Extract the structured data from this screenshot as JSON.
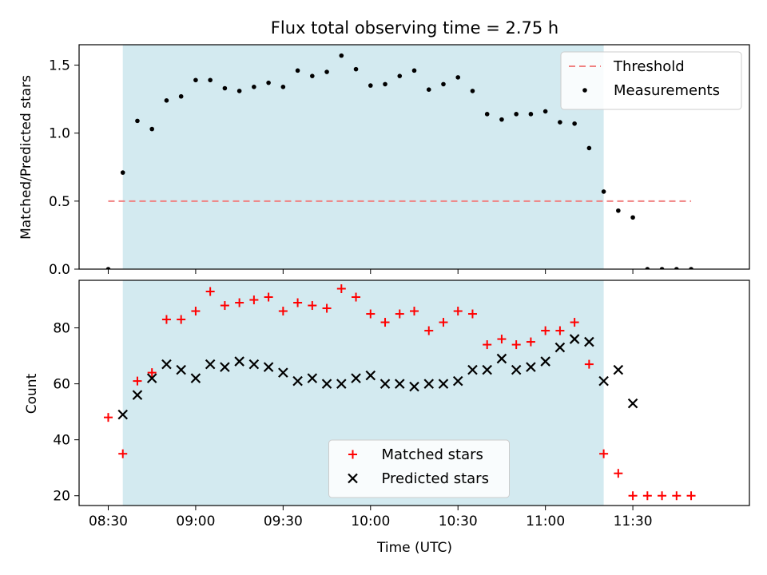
{
  "chart_data": [
    {
      "type": "scatter",
      "title": "Flux total observing time = 2.75 h",
      "xlabel": "",
      "ylabel": "Matched/Predicted stars",
      "x_ticks": [
        "08:30",
        "09:00",
        "09:30",
        "10:00",
        "10:30",
        "11:00",
        "11:30"
      ],
      "x_tick_labels_visible": false,
      "xlim": [
        "08:20",
        "12:10"
      ],
      "ylim": [
        0,
        1.65
      ],
      "y_ticks": [
        "0.0",
        "0.5",
        "1.0",
        "1.5"
      ],
      "shaded_span": [
        "08:35",
        "11:20"
      ],
      "shade_color": "#d3eaf0",
      "legend_position": "upper right",
      "threshold": {
        "name": "Threshold",
        "value": 0.5,
        "x_range": [
          "08:30",
          "11:50"
        ],
        "color": "#f08080",
        "style": "dashed"
      },
      "series": [
        {
          "name": "Measurements",
          "color": "#000000",
          "marker": "dot",
          "x": [
            "08:30",
            "08:35",
            "08:40",
            "08:45",
            "08:50",
            "08:55",
            "09:00",
            "09:05",
            "09:10",
            "09:15",
            "09:20",
            "09:25",
            "09:30",
            "09:35",
            "09:40",
            "09:45",
            "09:50",
            "09:55",
            "10:00",
            "10:05",
            "10:10",
            "10:15",
            "10:20",
            "10:25",
            "10:30",
            "10:35",
            "10:40",
            "10:45",
            "10:50",
            "10:55",
            "11:00",
            "11:05",
            "11:10",
            "11:15",
            "11:20",
            "11:25",
            "11:30",
            "11:35",
            "11:40",
            "11:45",
            "11:50"
          ],
          "y": [
            0.0,
            0.71,
            1.09,
            1.03,
            1.24,
            1.27,
            1.39,
            1.39,
            1.33,
            1.31,
            1.34,
            1.37,
            1.34,
            1.46,
            1.42,
            1.45,
            1.57,
            1.47,
            1.35,
            1.36,
            1.42,
            1.46,
            1.32,
            1.36,
            1.41,
            1.31,
            1.14,
            1.1,
            1.14,
            1.14,
            1.16,
            1.08,
            1.07,
            0.89,
            0.57,
            0.43,
            0.38,
            0.0,
            0.0,
            0.0,
            0.0
          ]
        }
      ]
    },
    {
      "type": "scatter",
      "title": "",
      "xlabel": "Time (UTC)",
      "ylabel": "Count",
      "x_ticks": [
        "08:30",
        "09:00",
        "09:30",
        "10:00",
        "10:30",
        "11:00",
        "11:30"
      ],
      "xlim": [
        "08:20",
        "12:10"
      ],
      "ylim": [
        16.5,
        97
      ],
      "y_ticks": [
        "20",
        "40",
        "60",
        "80"
      ],
      "shaded_span": [
        "08:35",
        "11:20"
      ],
      "shade_color": "#d3eaf0",
      "legend_position": "lower center",
      "series": [
        {
          "name": "Matched stars",
          "color": "#ff0000",
          "marker": "plus",
          "x": [
            "08:30",
            "08:35",
            "08:40",
            "08:45",
            "08:50",
            "08:55",
            "09:00",
            "09:05",
            "09:10",
            "09:15",
            "09:20",
            "09:25",
            "09:30",
            "09:35",
            "09:40",
            "09:45",
            "09:50",
            "09:55",
            "10:00",
            "10:05",
            "10:10",
            "10:15",
            "10:20",
            "10:25",
            "10:30",
            "10:35",
            "10:40",
            "10:45",
            "10:50",
            "10:55",
            "11:00",
            "11:05",
            "11:10",
            "11:15",
            "11:20",
            "11:25",
            "11:30",
            "11:35",
            "11:40",
            "11:45",
            "11:50"
          ],
          "y": [
            48,
            35,
            61,
            64,
            83,
            83,
            86,
            93,
            88,
            89,
            90,
            91,
            86,
            89,
            88,
            87,
            94,
            91,
            85,
            82,
            85,
            86,
            79,
            82,
            86,
            85,
            74,
            76,
            74,
            75,
            79,
            79,
            82,
            67,
            35,
            28,
            20,
            20,
            20,
            20,
            20
          ]
        },
        {
          "name": "Predicted stars",
          "color": "#000000",
          "marker": "x",
          "x": [
            "08:35",
            "08:40",
            "08:45",
            "08:50",
            "08:55",
            "09:00",
            "09:05",
            "09:10",
            "09:15",
            "09:20",
            "09:25",
            "09:30",
            "09:35",
            "09:40",
            "09:45",
            "09:50",
            "09:55",
            "10:00",
            "10:05",
            "10:10",
            "10:15",
            "10:20",
            "10:25",
            "10:30",
            "10:35",
            "10:40",
            "10:45",
            "10:50",
            "10:55",
            "11:00",
            "11:05",
            "11:10",
            "11:15",
            "11:20",
            "11:25",
            "11:30"
          ],
          "y": [
            49,
            56,
            62,
            67,
            65,
            62,
            67,
            66,
            68,
            67,
            66,
            64,
            61,
            62,
            60,
            60,
            62,
            63,
            60,
            60,
            59,
            60,
            60,
            61,
            65,
            65,
            69,
            65,
            66,
            68,
            73,
            76,
            75,
            61,
            65,
            53
          ]
        }
      ]
    }
  ]
}
